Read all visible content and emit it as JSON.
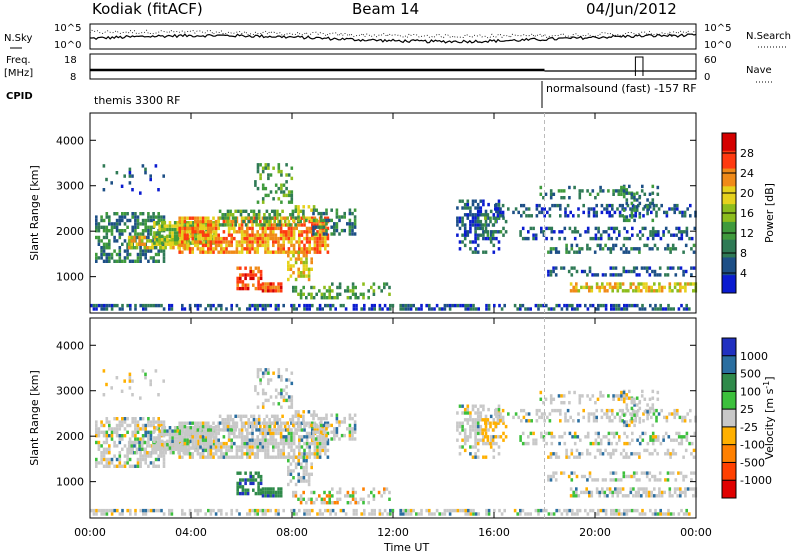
{
  "header": {
    "station": "Kodiak (fitACF)",
    "beam": "Beam 14",
    "date": "04/Jun/2012"
  },
  "status_panels": {
    "nsky_label": "N.Sky",
    "nsky_ticks": [
      "10^5",
      "10^0"
    ],
    "nsearch_label": "N.Search",
    "nsearch_ticks": [
      "10^5",
      "10^0"
    ],
    "freq_label_1": "Freq.",
    "freq_label_2": "[MHz]",
    "freq_ticks": [
      "18",
      "8"
    ],
    "nave_label": "Nave",
    "nave_ticks": [
      "60",
      "0"
    ],
    "cpid_label": "CPID",
    "cpid_left": "themis 3300 RF",
    "cpid_right": "normalsound (fast) -157 RF"
  },
  "chart_data": [
    {
      "type": "heatmap",
      "name": "power",
      "ylabel": "Slant Range [km]",
      "y_ticks": [
        "1000",
        "2000",
        "3000",
        "4000"
      ],
      "ylim": [
        200,
        4600
      ],
      "xlim_hours": [
        0,
        24
      ],
      "colorbar_label": "Power [dB]",
      "colorbar_ticks": [
        "4",
        "8",
        "12",
        "16",
        "20",
        "24",
        "28"
      ],
      "colors": [
        "#0a1bd0",
        "#1d4f86",
        "#2f7a55",
        "#3f9a3c",
        "#8dbd1c",
        "#e6d21c",
        "#f08a18",
        "#ff3a10",
        "#d40000"
      ]
    },
    {
      "type": "heatmap",
      "name": "velocity",
      "ylabel": "Slant Range [km]",
      "y_ticks": [
        "1000",
        "2000",
        "3000",
        "4000"
      ],
      "ylim": [
        200,
        4600
      ],
      "xlim_hours": [
        0,
        24
      ],
      "colorbar_label": "Velocity [m s^-1]",
      "colorbar_ticks": [
        "1000",
        "500",
        "100",
        "25",
        "-25",
        "-100",
        "-500",
        "-1000"
      ],
      "colors": [
        "#2030c0",
        "#2a6ea0",
        "#2f8a4a",
        "#3cc03c",
        "#c8c8c8",
        "#ffb000",
        "#ff8000",
        "#ff4000",
        "#e00000"
      ]
    }
  ],
  "x_axis": {
    "ticks": [
      "00:00",
      "04:00",
      "08:00",
      "12:00",
      "16:00",
      "20:00",
      "00:00"
    ],
    "label": "Time UT"
  }
}
